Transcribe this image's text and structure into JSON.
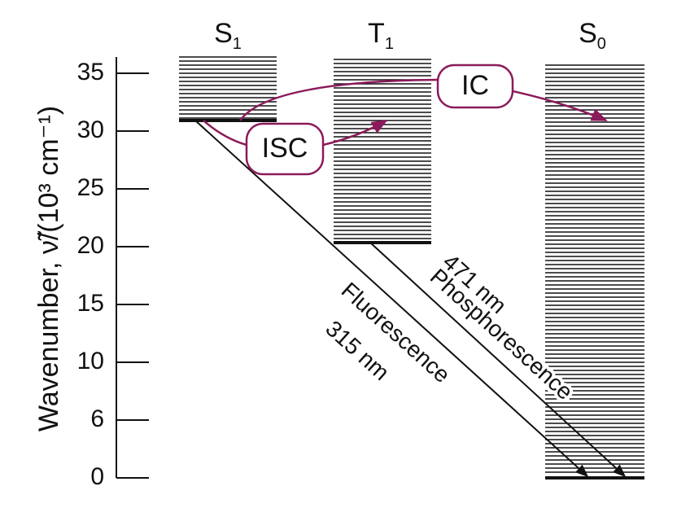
{
  "axis": {
    "label": "Wavenumber, ν̃/(10³ cm⁻¹)",
    "ticks": [
      "35",
      "30",
      "25",
      "20",
      "15",
      "10",
      "6",
      "0"
    ]
  },
  "states": [
    {
      "symbol": "S",
      "subscript": "1"
    },
    {
      "symbol": "T",
      "subscript": "1"
    },
    {
      "symbol": "S",
      "subscript": "0"
    }
  ],
  "processes": [
    "ISC",
    "IC"
  ],
  "transitions": {
    "fluorescence": {
      "name": "Fluorescence",
      "wavelength": "315 nm"
    },
    "phosphorescence": {
      "name": "Phosphorescence",
      "wavelength": "471 nm"
    }
  }
}
